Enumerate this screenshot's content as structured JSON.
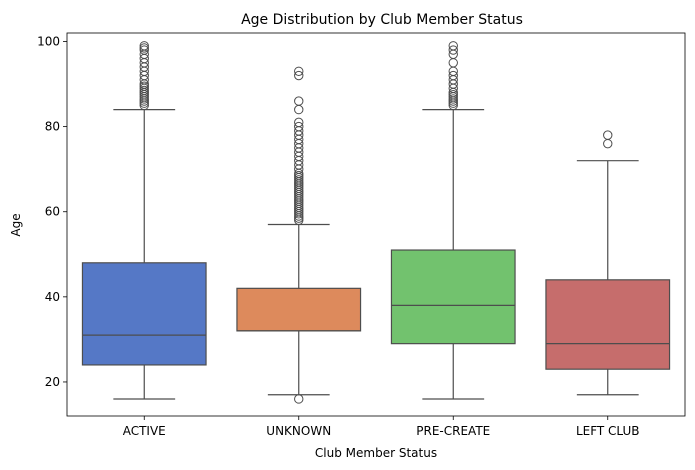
{
  "chart_data": {
    "type": "box",
    "title": "Age Distribution by Club Member Status",
    "xlabel": "Club Member Status",
    "ylabel": "Age",
    "ylim": [
      12,
      102
    ],
    "yticks": [
      20,
      40,
      60,
      80,
      100
    ],
    "grid": false,
    "categories": [
      "ACTIVE",
      "UNKNOWN",
      "PRE-CREATE",
      "LEFT CLUB"
    ],
    "colors": [
      "#5578c6",
      "#dd8a5c",
      "#72c26e",
      "#c66d6c"
    ],
    "line_color": "#4d4d4d",
    "boxes": [
      {
        "category": "ACTIVE",
        "whisker_low": 16,
        "q1": 24,
        "median": 31,
        "q3": 48,
        "whisker_high": 84,
        "outliers": [
          85,
          85.5,
          86,
          86.5,
          87,
          87.5,
          88,
          88.5,
          89,
          89.5,
          90,
          91,
          92,
          93,
          94,
          95,
          96,
          97,
          98,
          98.5,
          99
        ]
      },
      {
        "category": "UNKNOWN",
        "whisker_low": 17,
        "q1": 32,
        "median": 32,
        "q3": 42,
        "whisker_high": 57,
        "outliers": [
          16,
          58,
          58.5,
          59,
          59.5,
          60,
          60.5,
          61,
          61.5,
          62,
          62.5,
          63,
          63.5,
          64,
          64.5,
          65,
          65.5,
          66,
          66.5,
          67,
          67.5,
          68,
          68.5,
          69,
          70,
          71,
          72,
          73,
          74,
          75,
          76,
          77,
          78,
          79,
          80,
          81,
          84,
          86,
          92,
          93
        ]
      },
      {
        "category": "PRE-CREATE",
        "whisker_low": 16,
        "q1": 29,
        "median": 38,
        "q3": 51,
        "whisker_high": 84,
        "outliers": [
          85,
          85.5,
          86,
          86.5,
          87,
          87.5,
          88,
          89,
          90,
          91,
          92,
          93,
          95,
          97,
          98,
          99
        ]
      },
      {
        "category": "LEFT CLUB",
        "whisker_low": 17,
        "q1": 23,
        "median": 29,
        "q3": 44,
        "whisker_high": 72,
        "outliers": [
          76,
          78
        ]
      }
    ]
  }
}
